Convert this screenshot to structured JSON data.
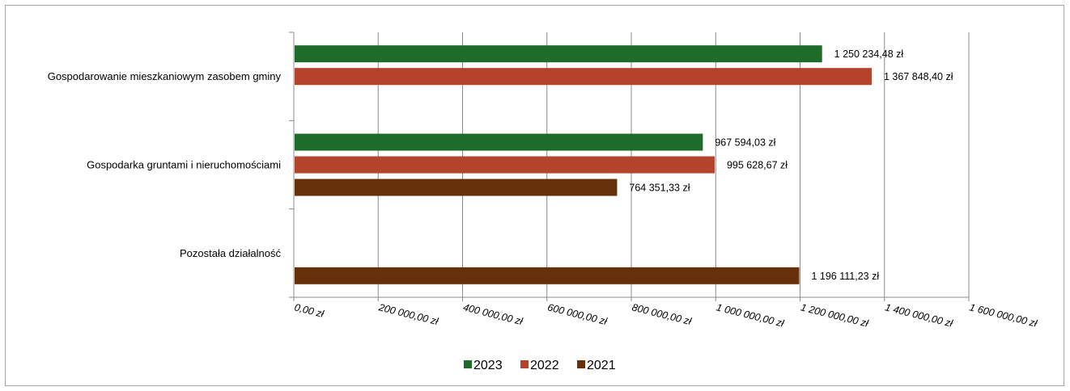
{
  "chart_data": {
    "type": "bar",
    "orientation": "horizontal",
    "categories": [
      "Gospodarowanie mieszkaniowym zasobem gminy",
      "Gospodarka gruntami i nieruchomościami",
      "Pozostała działalność"
    ],
    "series": [
      {
        "name": "2023",
        "color": "#1e6b2a",
        "values": [
          1250234.48,
          967594.03,
          null
        ],
        "labels": [
          "1 250 234,48 zł",
          "967 594,03 zł",
          null
        ]
      },
      {
        "name": "2022",
        "color": "#b3432a",
        "values": [
          1367848.4,
          995628.67,
          null
        ],
        "labels": [
          "1 367 848,40 zł",
          "995 628,67 zł",
          null
        ]
      },
      {
        "name": "2021",
        "color": "#66300a",
        "values": [
          null,
          764351.33,
          1196111.23
        ],
        "labels": [
          null,
          "764 351,33 zł",
          "1 196 111,23 zł"
        ]
      }
    ],
    "xlim": [
      0,
      1600000
    ],
    "xticks": [
      0,
      200000,
      400000,
      600000,
      800000,
      1000000,
      1200000,
      1400000,
      1600000
    ],
    "xtick_labels": [
      "0,00 zł",
      "200 000,00 zł",
      "400 000,00 zł",
      "600 000,00 zł",
      "800 000,00 zł",
      "1 000 000,00 zł",
      "1 200 000,00 zł",
      "1 400 000,00 zł",
      "1 600 000,00 zł"
    ],
    "grid": true,
    "legend_position": "bottom",
    "title": "",
    "xlabel": "",
    "ylabel": ""
  }
}
